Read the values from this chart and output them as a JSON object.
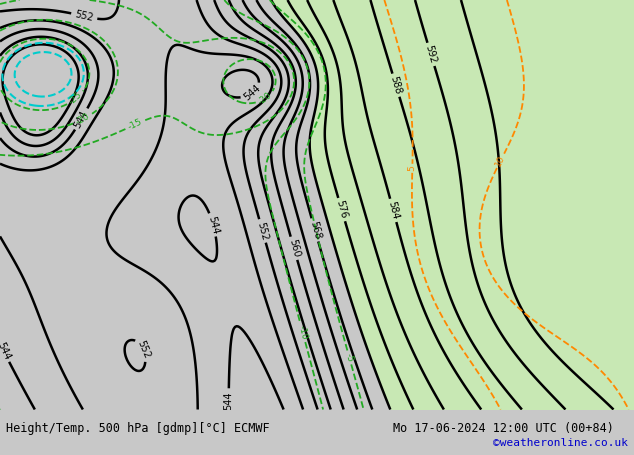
{
  "title_left": "Height/Temp. 500 hPa [gdmp][°C] ECMWF",
  "title_right": "Mo 17-06-2024 12:00 UTC (00+84)",
  "credit": "©weatheronline.co.uk",
  "bg_color": "#c8c8c8",
  "land_color": "#c8e8b4",
  "sea_color": "#c8c8c8",
  "z500_color": "#000000",
  "temp_neg_color": "#22aa22",
  "temp_pos_color": "#ff8800",
  "temp_cyan_color": "#00cccc",
  "title_fontsize": 8.5,
  "credit_fontsize": 8,
  "credit_color": "#0000cc"
}
